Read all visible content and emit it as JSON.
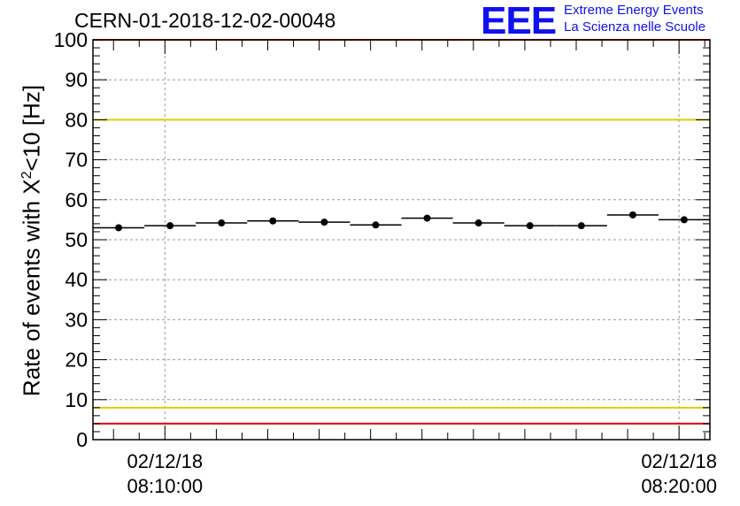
{
  "title": "CERN-01-2018-12-02-00048",
  "logo": {
    "mark": "EEE",
    "line1": "Extreme Energy Events",
    "line2": "La Scienza nelle Scuole"
  },
  "chart_data": {
    "type": "scatter",
    "ylabel_prefix": "Rate of events with X",
    "ylabel_sup": "2",
    "ylabel_suffix": "<10 [Hz]",
    "ylim": [
      0,
      100
    ],
    "yticks": [
      0,
      10,
      20,
      30,
      40,
      50,
      60,
      70,
      80,
      90,
      100
    ],
    "x_ticks": [
      {
        "date": "02/12/18",
        "time": "08:10:00",
        "minute": 10.0
      },
      {
        "date": "02/12/18",
        "time": "08:20:00",
        "minute": 20.0
      }
    ],
    "xlim_minutes": [
      8.6,
      20.6
    ],
    "grid": true,
    "reference_lines": [
      {
        "value": 100,
        "color": "#e00000"
      },
      {
        "value": 80,
        "color": "#e8c800"
      },
      {
        "value": 8,
        "color": "#e8c800"
      },
      {
        "value": 4,
        "color": "#e00000"
      }
    ],
    "series": [
      {
        "x_minutes": [
          9.1,
          10.1,
          11.1,
          12.1,
          13.1,
          14.1,
          15.1,
          16.1,
          17.1,
          18.1,
          19.1,
          20.1
        ],
        "x_halfwidth": 0.5,
        "values": [
          53.0,
          53.5,
          54.2,
          54.7,
          54.4,
          53.7,
          55.4,
          54.2,
          53.5,
          53.5,
          56.2,
          55.0
        ],
        "color": "#000000"
      }
    ]
  }
}
